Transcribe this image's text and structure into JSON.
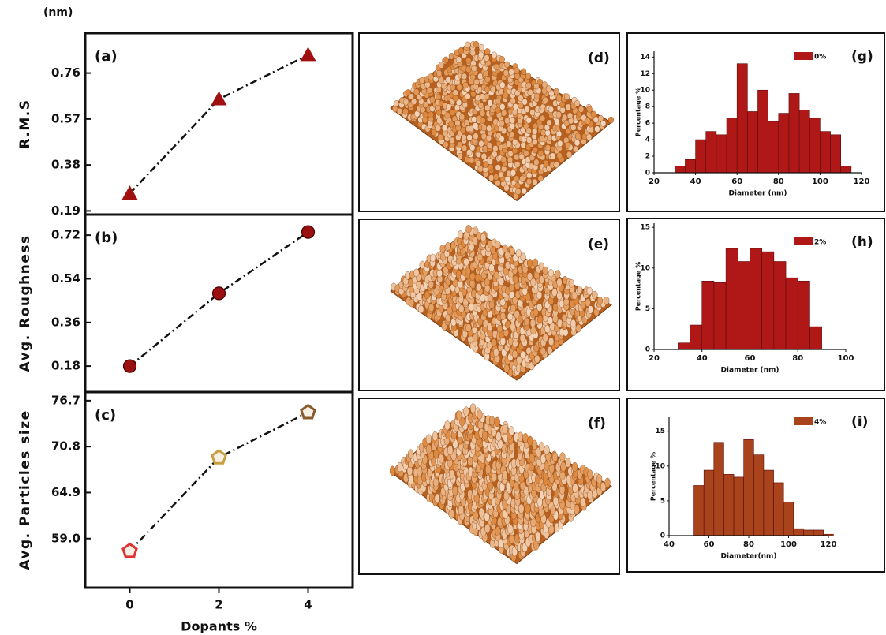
{
  "chart_data": [
    {
      "type": "line",
      "unit": "(nm)",
      "label": "(a)",
      "y_label": "R.M.S",
      "marker": "triangle",
      "color": "#a01010",
      "x": [
        0,
        2,
        4
      ],
      "values": [
        0.262,
        0.652,
        0.835
      ],
      "xlim": [
        -1,
        5
      ],
      "ylim": [
        0.175,
        0.925
      ],
      "yticks": [
        0.19,
        0.38,
        0.57,
        0.76
      ]
    },
    {
      "type": "line",
      "label": "(b)",
      "y_label": "Avg. Roughness",
      "marker": "circle",
      "color": "#9a1010",
      "x": [
        0,
        2,
        4
      ],
      "values": [
        0.18,
        0.48,
        0.733
      ],
      "xlim": [
        -1,
        5
      ],
      "ylim": [
        0.073,
        0.805
      ],
      "yticks": [
        0.18,
        0.36,
        0.54,
        0.72
      ]
    },
    {
      "type": "line",
      "label": "(c)",
      "y_label": "Avg. Particles size",
      "x_label": "Dopants %",
      "marker": "pentagon",
      "colors": [
        "#e03030",
        "#c8a040",
        "#8b5a2b"
      ],
      "x": [
        0,
        2,
        4
      ],
      "values": [
        57.4,
        69.4,
        75.2
      ],
      "xlim": [
        -1,
        5
      ],
      "xticks": [
        0,
        2,
        4
      ],
      "ylim": [
        52.7,
        77.8
      ],
      "yticks": [
        {
          "value": 59,
          "label": "59.0"
        },
        64.9,
        70.8,
        76.7
      ]
    },
    {
      "type": "histogram",
      "label": "(g)",
      "legend": "0%",
      "color": "#b01818",
      "x_label": "Diameter (nm)",
      "y_label": "Percentage %",
      "bins": [
        30,
        35,
        40,
        45,
        50,
        55,
        60,
        65,
        70,
        75,
        80,
        85,
        90,
        95,
        100,
        105,
        110,
        115
      ],
      "values": [
        0.8,
        1.6,
        4,
        5,
        4.6,
        6.6,
        13.2,
        7.4,
        10,
        6.2,
        7.2,
        9.6,
        7.6,
        6.6,
        5,
        4.6,
        0.8
      ],
      "xlim": [
        20,
        120
      ],
      "xticks": [
        20,
        40,
        60,
        80,
        100,
        120
      ],
      "ylim": [
        0,
        14.7
      ],
      "yticks": [
        0,
        2,
        4,
        6,
        8,
        10,
        12,
        14
      ]
    },
    {
      "type": "histogram",
      "label": "(h)",
      "legend": "2%",
      "color": "#b01818",
      "x_label": "Diameter (nm)",
      "y_label": "Percentage %",
      "bins": [
        30,
        35,
        40,
        45,
        50,
        55,
        60,
        65,
        70,
        75,
        80,
        85,
        90
      ],
      "values": [
        0.8,
        3,
        8.4,
        8.2,
        12.4,
        10.8,
        12.4,
        12,
        10.8,
        8.8,
        8.4,
        2.8
      ],
      "xlim": [
        20,
        100
      ],
      "xticks": [
        20,
        40,
        60,
        80,
        100
      ],
      "ylim": [
        0,
        15.5
      ],
      "yticks": [
        0,
        5,
        10,
        15
      ]
    },
    {
      "type": "histogram",
      "label": "(i)",
      "legend": "4%",
      "color": "#a8431c",
      "x_label": "Diameter(nm)",
      "y_label": "Percentage %",
      "bins": [
        52.5,
        57.5,
        62.5,
        67.5,
        72.5,
        77.5,
        82.5,
        87.5,
        92.5,
        97.5,
        102.5,
        107.5,
        112.5,
        117.5,
        122.5
      ],
      "values": [
        7.2,
        9.4,
        13.4,
        8.8,
        8.4,
        13.8,
        11.6,
        9.4,
        7.6,
        4.8,
        1.0,
        0.8,
        0.8,
        0.2
      ],
      "xlim": [
        40,
        120
      ],
      "xticks": [
        40,
        60,
        80,
        100,
        120
      ],
      "ylim": [
        0,
        17
      ],
      "yticks": [
        0,
        5,
        10,
        15
      ]
    }
  ],
  "afm_images": [
    {
      "label": "(d)"
    },
    {
      "label": "(e)"
    },
    {
      "label": "(f)"
    }
  ]
}
